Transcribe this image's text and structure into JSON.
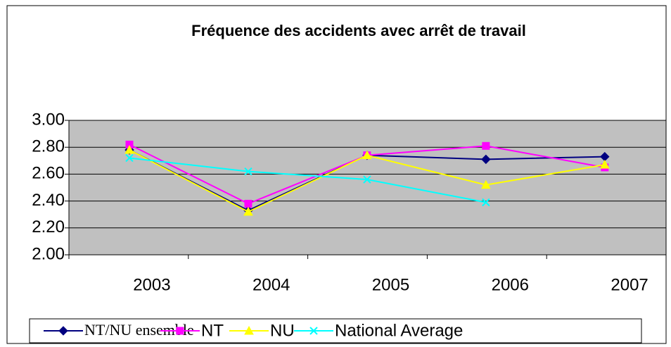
{
  "chart_data": {
    "type": "line",
    "title": "Fréquence des accidents avec arrêt de travail",
    "categories": [
      "2003",
      "2004",
      "2005",
      "2006",
      "2007"
    ],
    "series": [
      {
        "name": "NT/NU ensemble",
        "color": "#000080",
        "marker": "diamond",
        "values": [
          2.78,
          2.33,
          2.74,
          2.71,
          2.73
        ]
      },
      {
        "name": "NT",
        "color": "#ff00ff",
        "marker": "square",
        "values": [
          2.82,
          2.38,
          2.74,
          2.81,
          2.65
        ]
      },
      {
        "name": "NU",
        "color": "#ffff00",
        "marker": "triangle",
        "values": [
          2.78,
          2.32,
          2.74,
          2.52,
          2.67
        ]
      },
      {
        "name": "National Average",
        "color": "#00ffff",
        "marker": "x",
        "values": [
          2.72,
          2.62,
          2.56,
          2.39,
          null
        ]
      }
    ],
    "ylim": [
      2,
      3
    ],
    "yticks": [
      {
        "value": 2,
        "label": "2.00"
      },
      {
        "value": 2.2,
        "label": "2.20"
      },
      {
        "value": 2.4,
        "label": "2.40"
      },
      {
        "value": 2.6,
        "label": "2.60"
      },
      {
        "value": 2.8,
        "label": "2.80"
      },
      {
        "value": 3,
        "label": "3.00"
      }
    ],
    "grid": true,
    "plot_background": "#c0c0c0",
    "legend": "bottom"
  }
}
